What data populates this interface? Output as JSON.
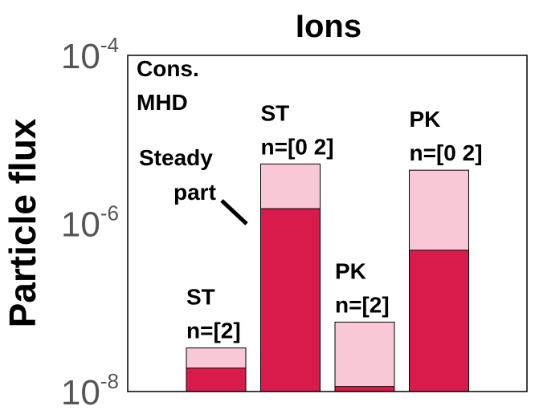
{
  "chart_data": {
    "type": "bar",
    "title": "Ions",
    "ylabel": "Particle flux",
    "yscale": "log",
    "ylim": [
      1e-08,
      0.0001
    ],
    "yticks": [
      {
        "base": "10",
        "exp": "-4"
      },
      {
        "base": "10",
        "exp": "-6"
      },
      {
        "base": "10",
        "exp": "-8"
      }
    ],
    "ytick_values": [
      0.0001,
      1e-06,
      1e-08
    ],
    "categories": [
      {
        "line1": "ST",
        "line2": "n=[2]"
      },
      {
        "line1": "ST",
        "line2": "n=[0 2]"
      },
      {
        "line1": "PK",
        "line2": "n=[2]"
      },
      {
        "line1": "PK",
        "line2": "n=[0 2]"
      }
    ],
    "series": [
      {
        "values": [
          1.9e-08,
          1.5e-06,
          1.15e-08,
          4.8e-07
        ],
        "color": "#d81b4a"
      },
      {
        "values": [
          3.3e-08,
          5.1e-06,
          6.7e-08,
          4.3e-06
        ],
        "color": "#f9c8d6"
      }
    ],
    "annotations": {
      "case_line1": "Cons.",
      "case_line2": "MHD",
      "steady_line1": "Steady",
      "steady_line2": "part"
    },
    "grid": false,
    "legend": "none"
  }
}
